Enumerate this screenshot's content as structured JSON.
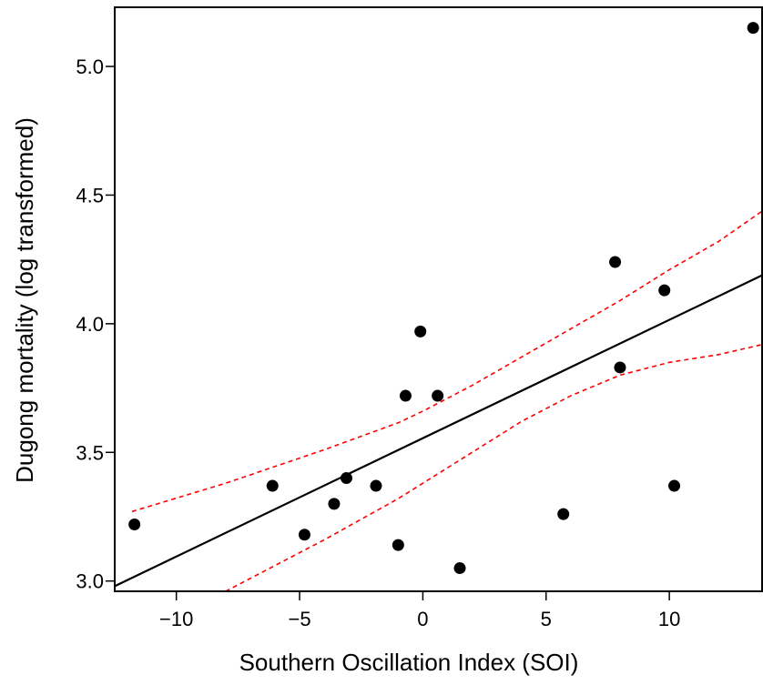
{
  "chart_data": {
    "type": "scatter",
    "title": "",
    "xlabel": "Southern Oscillation Index (SOI)",
    "ylabel": "Dugong mortality (log transformed)",
    "xlim": [
      -12.5,
      13.8
    ],
    "ylim": [
      2.96,
      5.23
    ],
    "xticks": [
      -10,
      -5,
      0,
      5,
      10
    ],
    "xtick_labels": [
      "−10",
      "−5",
      "0",
      "5",
      "10"
    ],
    "yticks": [
      3.0,
      3.5,
      4.0,
      4.5,
      5.0
    ],
    "ytick_labels": [
      "3.0",
      "3.5",
      "4.0",
      "4.5",
      "5.0"
    ],
    "grid": false,
    "points": [
      {
        "x": -11.7,
        "y": 3.22
      },
      {
        "x": -6.1,
        "y": 3.37
      },
      {
        "x": -4.8,
        "y": 3.18
      },
      {
        "x": -3.6,
        "y": 3.3
      },
      {
        "x": -3.1,
        "y": 3.4
      },
      {
        "x": -1.9,
        "y": 3.37
      },
      {
        "x": -1.0,
        "y": 3.14
      },
      {
        "x": -0.7,
        "y": 3.72
      },
      {
        "x": -0.1,
        "y": 3.97
      },
      {
        "x": 0.6,
        "y": 3.72
      },
      {
        "x": 1.5,
        "y": 3.05
      },
      {
        "x": 5.7,
        "y": 3.26
      },
      {
        "x": 7.8,
        "y": 4.24
      },
      {
        "x": 8.0,
        "y": 3.83
      },
      {
        "x": 9.8,
        "y": 4.13
      },
      {
        "x": 10.2,
        "y": 3.37
      },
      {
        "x": 13.4,
        "y": 5.15
      }
    ],
    "fit_line": {
      "x": [
        -12.5,
        13.8
      ],
      "y": [
        2.98,
        4.19
      ],
      "color": "#000000"
    },
    "ci_upper": {
      "x": [
        -11.8,
        -8,
        -4,
        -1,
        0,
        2,
        4,
        6,
        8,
        10,
        12,
        13.8
      ],
      "y": [
        3.27,
        3.38,
        3.51,
        3.615,
        3.66,
        3.76,
        3.87,
        3.98,
        4.09,
        4.21,
        4.32,
        4.44
      ],
      "color": "#ff0000"
    },
    "ci_lower": {
      "x": [
        -8,
        -4,
        -1,
        0,
        2,
        4,
        6,
        8,
        10,
        12,
        13.8
      ],
      "y": [
        2.96,
        3.16,
        3.32,
        3.38,
        3.5,
        3.62,
        3.72,
        3.8,
        3.85,
        3.88,
        3.92
      ],
      "color": "#ff0000"
    }
  }
}
